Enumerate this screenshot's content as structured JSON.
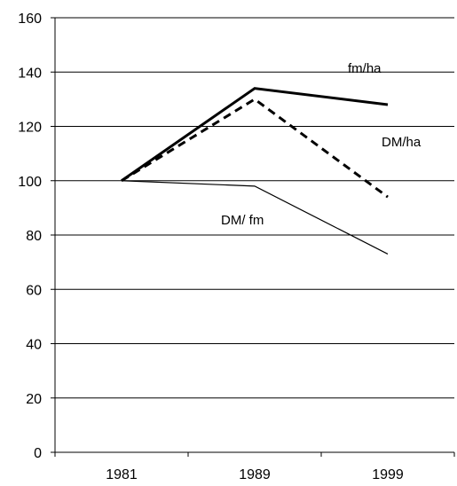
{
  "chart_data": {
    "type": "line",
    "title": "",
    "xlabel": "",
    "ylabel": "",
    "categories": [
      "1981",
      "1989",
      "1999"
    ],
    "ylim": [
      0,
      160
    ],
    "yticks": [
      0,
      20,
      40,
      60,
      80,
      100,
      120,
      140,
      160
    ],
    "grid": "horizontal",
    "legend": "none (series labelled directly on plot)",
    "series": [
      {
        "name": "fm/ha",
        "values": [
          100,
          134,
          128
        ],
        "style": "thick-solid",
        "color": "#000000"
      },
      {
        "name": "DM/ha",
        "values": [
          100,
          130,
          94
        ],
        "style": "thick-dashed",
        "color": "#000000"
      },
      {
        "name": "DM/ fm",
        "values": [
          100,
          98,
          73
        ],
        "style": "thin-solid",
        "color": "#000000"
      }
    ]
  }
}
